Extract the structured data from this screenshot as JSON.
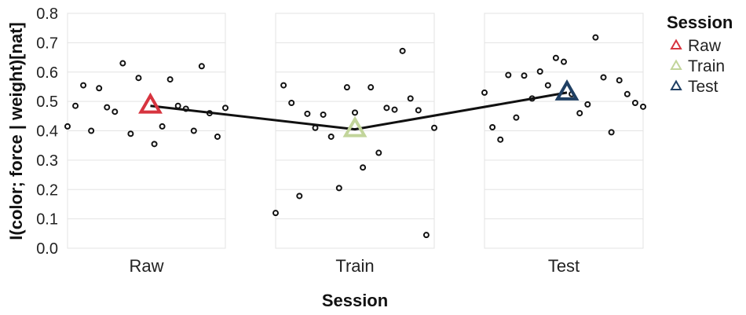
{
  "chart_data": {
    "type": "scatter",
    "xlabel": "Session",
    "ylabel": "I(color; force | weight)[nat]",
    "ylim": [
      0,
      0.8
    ],
    "yticks": [
      "0.0",
      "0.1",
      "0.2",
      "0.3",
      "0.4",
      "0.5",
      "0.6",
      "0.7",
      "0.8"
    ],
    "categories": [
      "Raw",
      "Train",
      "Test"
    ],
    "grid": true,
    "legend": {
      "title": "Session",
      "position": "top-right",
      "entries": [
        {
          "label": "Raw",
          "color": "#d7343f"
        },
        {
          "label": "Train",
          "color": "#c2d59b"
        },
        {
          "label": "Test",
          "color": "#1f3f63"
        }
      ]
    },
    "points": [
      [
        {
          "x": 0.0,
          "y": 0.415
        },
        {
          "x": 0.05,
          "y": 0.485
        },
        {
          "x": 0.1,
          "y": 0.555
        },
        {
          "x": 0.15,
          "y": 0.4
        },
        {
          "x": 0.2,
          "y": 0.545
        },
        {
          "x": 0.25,
          "y": 0.48
        },
        {
          "x": 0.3,
          "y": 0.465
        },
        {
          "x": 0.35,
          "y": 0.63
        },
        {
          "x": 0.4,
          "y": 0.39
        },
        {
          "x": 0.45,
          "y": 0.58
        },
        {
          "x": 0.55,
          "y": 0.355
        },
        {
          "x": 0.6,
          "y": 0.415
        },
        {
          "x": 0.65,
          "y": 0.575
        },
        {
          "x": 0.7,
          "y": 0.485
        },
        {
          "x": 0.75,
          "y": 0.475
        },
        {
          "x": 0.8,
          "y": 0.4
        },
        {
          "x": 0.85,
          "y": 0.62
        },
        {
          "x": 0.9,
          "y": 0.46
        },
        {
          "x": 0.95,
          "y": 0.38
        },
        {
          "x": 1.0,
          "y": 0.478
        }
      ],
      [
        {
          "x": 0.0,
          "y": 0.12
        },
        {
          "x": 0.05,
          "y": 0.555
        },
        {
          "x": 0.1,
          "y": 0.495
        },
        {
          "x": 0.15,
          "y": 0.178
        },
        {
          "x": 0.2,
          "y": 0.458
        },
        {
          "x": 0.25,
          "y": 0.41
        },
        {
          "x": 0.3,
          "y": 0.455
        },
        {
          "x": 0.35,
          "y": 0.38
        },
        {
          "x": 0.4,
          "y": 0.205
        },
        {
          "x": 0.45,
          "y": 0.548
        },
        {
          "x": 0.5,
          "y": 0.462
        },
        {
          "x": 0.55,
          "y": 0.275
        },
        {
          "x": 0.6,
          "y": 0.548
        },
        {
          "x": 0.65,
          "y": 0.325
        },
        {
          "x": 0.7,
          "y": 0.478
        },
        {
          "x": 0.75,
          "y": 0.472
        },
        {
          "x": 0.8,
          "y": 0.672
        },
        {
          "x": 0.85,
          "y": 0.51
        },
        {
          "x": 0.9,
          "y": 0.47
        },
        {
          "x": 0.95,
          "y": 0.045
        },
        {
          "x": 1.0,
          "y": 0.41
        }
      ],
      [
        {
          "x": 0.0,
          "y": 0.53
        },
        {
          "x": 0.05,
          "y": 0.412
        },
        {
          "x": 0.1,
          "y": 0.37
        },
        {
          "x": 0.15,
          "y": 0.59
        },
        {
          "x": 0.2,
          "y": 0.445
        },
        {
          "x": 0.25,
          "y": 0.588
        },
        {
          "x": 0.3,
          "y": 0.51
        },
        {
          "x": 0.35,
          "y": 0.602
        },
        {
          "x": 0.4,
          "y": 0.555
        },
        {
          "x": 0.45,
          "y": 0.648
        },
        {
          "x": 0.5,
          "y": 0.635
        },
        {
          "x": 0.55,
          "y": 0.525
        },
        {
          "x": 0.6,
          "y": 0.46
        },
        {
          "x": 0.65,
          "y": 0.49
        },
        {
          "x": 0.7,
          "y": 0.718
        },
        {
          "x": 0.75,
          "y": 0.582
        },
        {
          "x": 0.8,
          "y": 0.395
        },
        {
          "x": 0.85,
          "y": 0.572
        },
        {
          "x": 0.9,
          "y": 0.525
        },
        {
          "x": 0.95,
          "y": 0.495
        },
        {
          "x": 1.0,
          "y": 0.482
        }
      ]
    ],
    "means": [
      0.485,
      0.405,
      0.53
    ],
    "mean_line_color": "#111111",
    "point_color": "#111111"
  }
}
